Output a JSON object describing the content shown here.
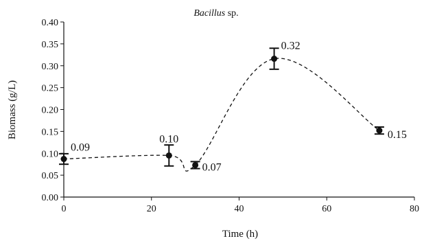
{
  "chart_data": {
    "type": "scatter",
    "title": {
      "italic": "Bacillus",
      "rest": " sp."
    },
    "xlabel": "Time (h)",
    "ylabel": "Biomass (g/L)",
    "xlim": [
      0,
      80
    ],
    "ylim": [
      0,
      0.4
    ],
    "x_ticks": [
      0,
      20,
      40,
      60,
      80
    ],
    "y_ticks": [
      0.0,
      0.05,
      0.1,
      0.15,
      0.2,
      0.25,
      0.3,
      0.35,
      0.4
    ],
    "x_tick_labels": [
      "0",
      "20",
      "40",
      "60",
      "80"
    ],
    "y_tick_labels": [
      "0.00",
      "0.05",
      "0.10",
      "0.15",
      "0.20",
      "0.25",
      "0.30",
      "0.35",
      "0.40"
    ],
    "grid": false,
    "line_style": "dashed smooth",
    "series": [
      {
        "x": [
          0,
          24,
          30,
          48,
          72
        ],
        "y": [
          0.087,
          0.095,
          0.073,
          0.316,
          0.152
        ],
        "error": [
          0.012,
          0.024,
          0.008,
          0.024,
          0.008
        ],
        "labels": [
          "0.09",
          "0.10",
          "0.07",
          "0.32",
          "0.15"
        ]
      }
    ]
  }
}
